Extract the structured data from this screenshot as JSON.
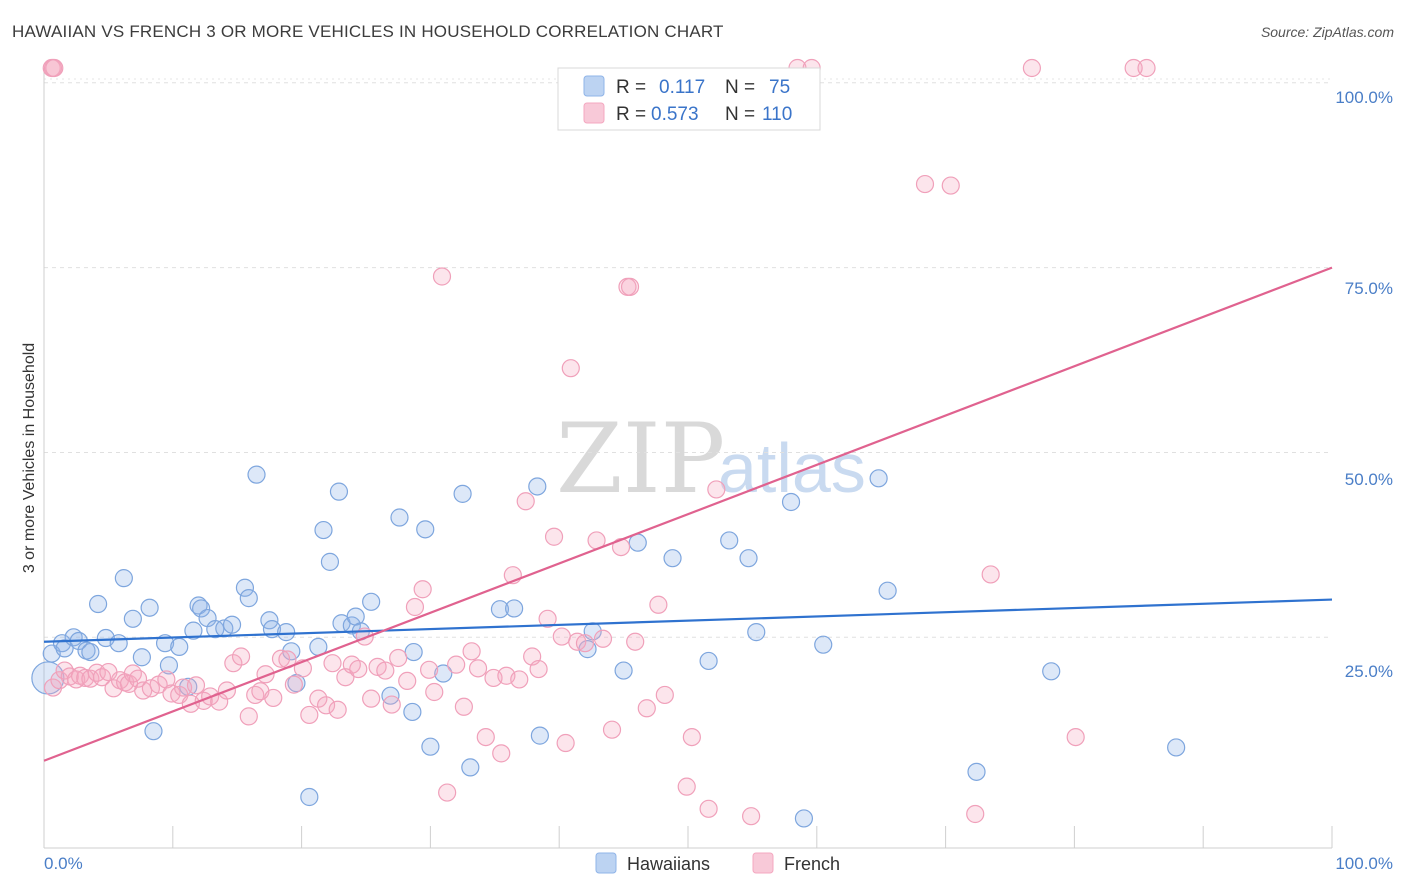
{
  "header": {
    "title": "HAWAIIAN VS FRENCH 3 OR MORE VEHICLES IN HOUSEHOLD CORRELATION CHART",
    "source": "Source: ZipAtlas.com"
  },
  "watermark": {
    "zip": "ZIP",
    "atlas": "atlas"
  },
  "legend": {
    "rows": [
      {
        "r_label": "R =",
        "r_value": "0.117",
        "n_label": "N =",
        "n_value": "75",
        "color": "#8fb4e8"
      },
      {
        "r_label": "R =",
        "r_value": "0.573",
        "n_label": "N =",
        "n_value": "110",
        "color": "#f4a8c0"
      }
    ]
  },
  "bottom_legend": {
    "items": [
      {
        "label": "Hawaiians",
        "color": "#8fb4e8"
      },
      {
        "label": "French",
        "color": "#f4a8c0"
      }
    ]
  },
  "chart_data": {
    "type": "scatter",
    "title": "HAWAIIAN VS FRENCH 3 OR MORE VEHICLES IN HOUSEHOLD CORRELATION CHART",
    "xlabel": "",
    "ylabel": "3 or more Vehicles in Household",
    "x_tick_labels": [
      "0.0%",
      "100.0%"
    ],
    "y_tick_labels": [
      "25.0%",
      "50.0%",
      "75.0%",
      "100.0%"
    ],
    "xlim": [
      0,
      100
    ],
    "ylim": [
      -3.5,
      102
    ],
    "grid": "horizontal dashed",
    "legend_position": "top-center",
    "colors": {
      "Hawaiians": "#4a86d8",
      "French": "#e0628f"
    },
    "series": [
      {
        "name": "Hawaiians",
        "r": 0.117,
        "n": 75,
        "trend": {
          "x": [
            0,
            100
          ],
          "y": [
            24.4,
            30.1
          ]
        },
        "points": [
          [
            0.3,
            19.5
          ],
          [
            0.6,
            22.8
          ],
          [
            1.4,
            24.2
          ],
          [
            1.6,
            23.5
          ],
          [
            2.3,
            25.0
          ],
          [
            2.7,
            24.5
          ],
          [
            3.3,
            23.2
          ],
          [
            3.6,
            23.0
          ],
          [
            4.2,
            29.5
          ],
          [
            4.8,
            24.9
          ],
          [
            5.8,
            24.2
          ],
          [
            6.2,
            33.0
          ],
          [
            6.9,
            27.5
          ],
          [
            7.6,
            22.3
          ],
          [
            8.2,
            29.0
          ],
          [
            8.5,
            12.3
          ],
          [
            9.4,
            24.2
          ],
          [
            9.7,
            21.2
          ],
          [
            10.5,
            23.7
          ],
          [
            11.2,
            18.3
          ],
          [
            11.6,
            25.9
          ],
          [
            12.0,
            29.3
          ],
          [
            12.2,
            28.9
          ],
          [
            12.7,
            27.6
          ],
          [
            13.3,
            26.1
          ],
          [
            14.0,
            26.2
          ],
          [
            14.6,
            26.7
          ],
          [
            15.6,
            31.7
          ],
          [
            15.9,
            30.3
          ],
          [
            16.5,
            47.0
          ],
          [
            17.5,
            27.3
          ],
          [
            17.7,
            26.1
          ],
          [
            18.8,
            25.7
          ],
          [
            19.2,
            23.1
          ],
          [
            19.6,
            18.8
          ],
          [
            20.6,
            3.4
          ],
          [
            21.3,
            23.7
          ],
          [
            21.7,
            39.5
          ],
          [
            22.2,
            35.2
          ],
          [
            22.9,
            44.7
          ],
          [
            23.1,
            26.9
          ],
          [
            23.9,
            26.6
          ],
          [
            24.2,
            27.8
          ],
          [
            24.6,
            25.8
          ],
          [
            25.4,
            29.8
          ],
          [
            26.9,
            17.1
          ],
          [
            27.6,
            41.2
          ],
          [
            28.6,
            14.9
          ],
          [
            28.7,
            23.0
          ],
          [
            29.6,
            39.6
          ],
          [
            30.0,
            10.2
          ],
          [
            31.0,
            20.1
          ],
          [
            32.5,
            44.4
          ],
          [
            33.1,
            7.4
          ],
          [
            35.4,
            28.8
          ],
          [
            36.5,
            28.9
          ],
          [
            38.3,
            45.4
          ],
          [
            38.5,
            11.7
          ],
          [
            42.2,
            23.4
          ],
          [
            42.6,
            25.8
          ],
          [
            45.0,
            20.5
          ],
          [
            46.1,
            37.8
          ],
          [
            48.8,
            35.7
          ],
          [
            51.6,
            21.8
          ],
          [
            53.2,
            38.1
          ],
          [
            54.7,
            35.7
          ],
          [
            55.3,
            25.7
          ],
          [
            58.0,
            43.3
          ],
          [
            59.0,
            0.5
          ],
          [
            60.5,
            24.0
          ],
          [
            64.8,
            46.5
          ],
          [
            65.5,
            31.3
          ],
          [
            72.4,
            6.8
          ],
          [
            78.2,
            20.4
          ],
          [
            87.9,
            10.1
          ]
        ]
      },
      {
        "name": "French",
        "r": 0.573,
        "n": 110,
        "trend": {
          "x": [
            0,
            100
          ],
          "y": [
            8.3,
            75.0
          ]
        },
        "points": [
          [
            0.7,
            18.2
          ],
          [
            1.2,
            19.2
          ],
          [
            1.6,
            20.5
          ],
          [
            2.0,
            19.7
          ],
          [
            2.5,
            19.3
          ],
          [
            2.8,
            19.8
          ],
          [
            3.2,
            19.5
          ],
          [
            3.6,
            19.4
          ],
          [
            4.1,
            20.2
          ],
          [
            4.5,
            19.6
          ],
          [
            5.0,
            20.3
          ],
          [
            5.4,
            18.1
          ],
          [
            5.9,
            19.2
          ],
          [
            6.3,
            18.9
          ],
          [
            6.6,
            18.7
          ],
          [
            6.9,
            20.1
          ],
          [
            7.3,
            19.4
          ],
          [
            7.7,
            17.8
          ],
          [
            8.3,
            18.1
          ],
          [
            8.9,
            18.6
          ],
          [
            9.5,
            19.3
          ],
          [
            9.9,
            17.4
          ],
          [
            10.5,
            17.2
          ],
          [
            10.8,
            18.2
          ],
          [
            11.4,
            16.0
          ],
          [
            11.8,
            18.5
          ],
          [
            12.4,
            16.4
          ],
          [
            12.9,
            17.0
          ],
          [
            13.6,
            16.3
          ],
          [
            14.2,
            17.8
          ],
          [
            14.7,
            21.5
          ],
          [
            15.3,
            22.4
          ],
          [
            15.9,
            14.3
          ],
          [
            16.4,
            17.2
          ],
          [
            16.8,
            17.7
          ],
          [
            17.2,
            20.0
          ],
          [
            17.8,
            16.8
          ],
          [
            18.4,
            22.1
          ],
          [
            18.9,
            22.0
          ],
          [
            19.4,
            18.6
          ],
          [
            20.1,
            20.8
          ],
          [
            20.6,
            14.5
          ],
          [
            21.3,
            16.7
          ],
          [
            21.9,
            15.8
          ],
          [
            22.4,
            21.5
          ],
          [
            22.8,
            15.2
          ],
          [
            23.4,
            19.6
          ],
          [
            23.9,
            21.3
          ],
          [
            24.4,
            20.7
          ],
          [
            24.9,
            25.1
          ],
          [
            25.4,
            16.7
          ],
          [
            25.9,
            21.0
          ],
          [
            26.5,
            20.5
          ],
          [
            27.0,
            15.9
          ],
          [
            27.5,
            22.2
          ],
          [
            28.2,
            19.1
          ],
          [
            28.8,
            29.1
          ],
          [
            29.4,
            31.5
          ],
          [
            29.9,
            20.6
          ],
          [
            30.3,
            17.6
          ],
          [
            30.9,
            73.8
          ],
          [
            31.3,
            4.0
          ],
          [
            32.0,
            21.3
          ],
          [
            32.6,
            15.6
          ],
          [
            33.2,
            23.1
          ],
          [
            33.7,
            20.8
          ],
          [
            34.3,
            11.5
          ],
          [
            34.9,
            19.5
          ],
          [
            35.5,
            9.3
          ],
          [
            35.9,
            19.8
          ],
          [
            36.4,
            33.4
          ],
          [
            36.9,
            19.3
          ],
          [
            37.4,
            43.4
          ],
          [
            37.9,
            22.4
          ],
          [
            38.4,
            20.7
          ],
          [
            39.1,
            27.5
          ],
          [
            39.6,
            38.6
          ],
          [
            40.2,
            25.1
          ],
          [
            40.5,
            10.7
          ],
          [
            40.9,
            61.4
          ],
          [
            41.4,
            24.4
          ],
          [
            42.0,
            24.2
          ],
          [
            42.9,
            38.1
          ],
          [
            43.4,
            24.8
          ],
          [
            44.1,
            12.5
          ],
          [
            44.8,
            37.2
          ],
          [
            45.3,
            72.4
          ],
          [
            45.5,
            72.4
          ],
          [
            45.9,
            24.4
          ],
          [
            46.8,
            15.4
          ],
          [
            47.7,
            29.4
          ],
          [
            48.2,
            17.2
          ],
          [
            49.9,
            4.8
          ],
          [
            50.3,
            11.5
          ],
          [
            51.6,
            1.8
          ],
          [
            52.2,
            45.0
          ],
          [
            54.9,
            0.8
          ],
          [
            58.5,
            102.0
          ],
          [
            59.6,
            102.0
          ],
          [
            68.4,
            86.3
          ],
          [
            70.4,
            86.1
          ],
          [
            72.3,
            1.1
          ],
          [
            73.5,
            33.5
          ],
          [
            76.7,
            102.0
          ],
          [
            80.1,
            11.5
          ],
          [
            84.6,
            102.0
          ],
          [
            85.6,
            102.0
          ],
          [
            0.6,
            102.0
          ],
          [
            0.7,
            102.0
          ],
          [
            0.8,
            102.0
          ]
        ]
      }
    ]
  }
}
